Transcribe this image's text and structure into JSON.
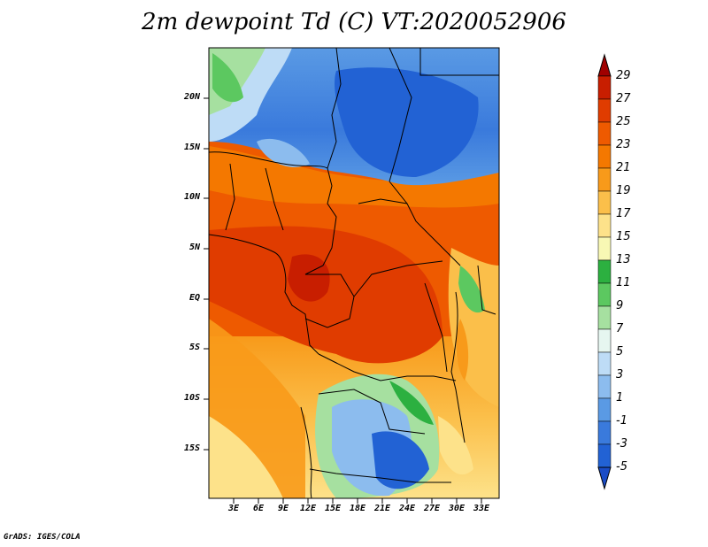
{
  "title": "2m dewpoint Td (C) VT:2020052906",
  "credit": "GrADS: IGES/COLA",
  "map": {
    "lat_labels": [
      "20N",
      "15N",
      "10N",
      "5N",
      "EQ",
      "5S",
      "10S",
      "15S"
    ],
    "lon_labels": [
      "3E",
      "6E",
      "9E",
      "12E",
      "15E",
      "18E",
      "21E",
      "24E",
      "27E",
      "30E",
      "33E"
    ]
  },
  "colorbar": {
    "labels": [
      "29",
      "27",
      "25",
      "23",
      "21",
      "19",
      "17",
      "15",
      "13",
      "11",
      "9",
      "7",
      "5",
      "3",
      "1",
      "-1",
      "-3",
      "-5"
    ],
    "colors": [
      "#a00000",
      "#c81e00",
      "#e03c00",
      "#ee5a00",
      "#f47800",
      "#f89a1a",
      "#fbbf4a",
      "#fde28a",
      "#f8f8b4",
      "#2cb040",
      "#5cc860",
      "#a6e0a0",
      "#e6f6f0",
      "#bedcf6",
      "#8cbcee",
      "#5a9ae4",
      "#3a7adc",
      "#2262d4",
      "#1a4cc6"
    ]
  }
}
